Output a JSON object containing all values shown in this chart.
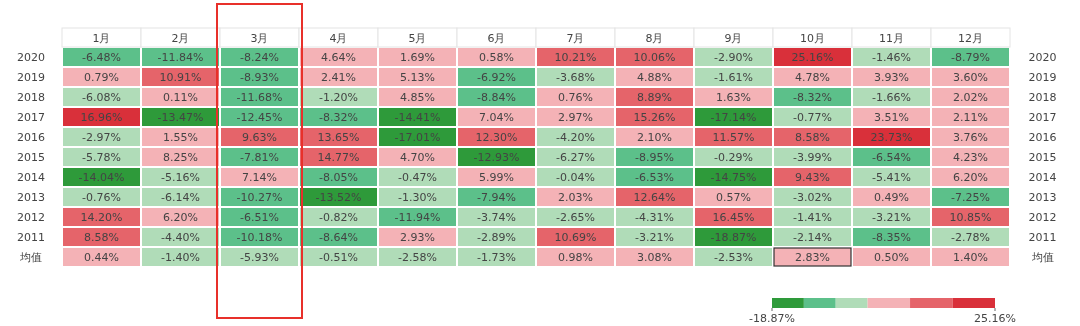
{
  "chart_data": {
    "type": "heatmap",
    "categories": [
      "1月",
      "2月",
      "3月",
      "4月",
      "5月",
      "6月",
      "7月",
      "8月",
      "9月",
      "10月",
      "11月",
      "12月"
    ],
    "y_categories": [
      "2020",
      "2019",
      "2018",
      "2017",
      "2016",
      "2015",
      "2014",
      "2013",
      "2012",
      "2011",
      "均值"
    ],
    "y2_categories": [
      "2020",
      "2019",
      "2018",
      "2017",
      "2016",
      "2015",
      "2014",
      "2013",
      "2012",
      "2011",
      "均值"
    ],
    "cells": [
      [
        -6.48,
        -11.84,
        -8.24,
        4.64,
        1.69,
        0.58,
        10.21,
        10.06,
        -2.9,
        25.16,
        -1.46,
        -8.79
      ],
      [
        0.79,
        10.91,
        -8.93,
        2.41,
        5.13,
        -6.92,
        -3.68,
        4.88,
        -1.61,
        4.78,
        3.93,
        3.6
      ],
      [
        -6.08,
        0.11,
        -11.68,
        -1.2,
        4.85,
        -8.84,
        0.76,
        8.89,
        1.63,
        -8.32,
        -1.66,
        2.02
      ],
      [
        16.96,
        -13.47,
        -12.45,
        -8.32,
        -14.41,
        7.04,
        2.97,
        15.26,
        -17.14,
        -0.77,
        3.51,
        2.11
      ],
      [
        -2.97,
        1.55,
        9.63,
        13.65,
        -17.01,
        12.3,
        -4.2,
        2.1,
        11.57,
        8.58,
        23.73,
        3.76
      ],
      [
        -5.78,
        8.25,
        -7.81,
        14.77,
        4.7,
        -12.93,
        -6.27,
        -8.95,
        -0.29,
        -3.99,
        -6.54,
        4.23
      ],
      [
        -14.04,
        -5.16,
        7.14,
        -8.05,
        -0.47,
        5.99,
        -0.04,
        -6.53,
        -14.75,
        9.43,
        -5.41,
        6.2
      ],
      [
        -0.76,
        -6.14,
        -10.27,
        -13.52,
        -1.3,
        -7.94,
        2.03,
        12.64,
        0.57,
        -3.02,
        0.49,
        -7.25
      ],
      [
        14.2,
        6.2,
        -6.51,
        -0.82,
        -11.94,
        -3.74,
        -2.65,
        -4.31,
        16.45,
        -1.41,
        -3.21,
        10.85
      ],
      [
        8.58,
        -4.4,
        -10.18,
        -8.64,
        2.93,
        -2.89,
        10.69,
        -3.21,
        -18.87,
        -2.14,
        -8.35,
        -2.78
      ],
      [
        0.44,
        -1.4,
        -5.93,
        -0.51,
        -2.58,
        -1.73,
        0.98,
        3.08,
        -2.53,
        2.83,
        0.5,
        1.4
      ]
    ],
    "cell_labels": [
      [
        "-6.48%",
        "-11.84%",
        "-8.24%",
        "4.64%",
        "1.69%",
        "0.58%",
        "10.21%",
        "10.06%",
        "-2.90%",
        "25.16%",
        "-1.46%",
        "-8.79%"
      ],
      [
        "0.79%",
        "10.91%",
        "-8.93%",
        "2.41%",
        "5.13%",
        "-6.92%",
        "-3.68%",
        "4.88%",
        "-1.61%",
        "4.78%",
        "3.93%",
        "3.60%"
      ],
      [
        "-6.08%",
        "0.11%",
        "-11.68%",
        "-1.20%",
        "4.85%",
        "-8.84%",
        "0.76%",
        "8.89%",
        "1.63%",
        "-8.32%",
        "-1.66%",
        "2.02%"
      ],
      [
        "16.96%",
        "-13.47%",
        "-12.45%",
        "-8.32%",
        "-14.41%",
        "7.04%",
        "2.97%",
        "15.26%",
        "-17.14%",
        "-0.77%",
        "3.51%",
        "2.11%"
      ],
      [
        "-2.97%",
        "1.55%",
        "9.63%",
        "13.65%",
        "-17.01%",
        "12.30%",
        "-4.20%",
        "2.10%",
        "11.57%",
        "8.58%",
        "23.73%",
        "3.76%"
      ],
      [
        "-5.78%",
        "8.25%",
        "-7.81%",
        "14.77%",
        "4.70%",
        "-12.93%",
        "-6.27%",
        "-8.95%",
        "-0.29%",
        "-3.99%",
        "-6.54%",
        "4.23%"
      ],
      [
        "-14.04%",
        "-5.16%",
        "7.14%",
        "-8.05%",
        "-0.47%",
        "5.99%",
        "-0.04%",
        "-6.53%",
        "-14.75%",
        "9.43%",
        "-5.41%",
        "6.20%"
      ],
      [
        "-0.76%",
        "-6.14%",
        "-10.27%",
        "-13.52%",
        "-1.30%",
        "-7.94%",
        "2.03%",
        "12.64%",
        "0.57%",
        "-3.02%",
        "0.49%",
        "-7.25%"
      ],
      [
        "14.20%",
        "6.20%",
        "-6.51%",
        "-0.82%",
        "-11.94%",
        "-3.74%",
        "-2.65%",
        "-4.31%",
        "16.45%",
        "-1.41%",
        "-3.21%",
        "10.85%"
      ],
      [
        "8.58%",
        "-4.40%",
        "-10.18%",
        "-8.64%",
        "2.93%",
        "-2.89%",
        "10.69%",
        "-3.21%",
        "-18.87%",
        "-2.14%",
        "-8.35%",
        "-2.78%"
      ],
      [
        "0.44%",
        "-1.40%",
        "-5.93%",
        "-0.51%",
        "-2.58%",
        "-1.73%",
        "0.98%",
        "3.08%",
        "-2.53%",
        "2.83%",
        "0.50%",
        "1.40%"
      ]
    ],
    "clim": [
      -18.87,
      25.16
    ],
    "cticks": [
      {
        "value": -18.87,
        "label": "-18.87%"
      },
      {
        "value": 25.16,
        "label": "25.16%"
      }
    ],
    "colors": [
      "#2e9a3a",
      "#5cc08a",
      "#b0dcb8",
      "#f4b2b6",
      "#e5646a",
      "#d9303a"
    ]
  }
}
